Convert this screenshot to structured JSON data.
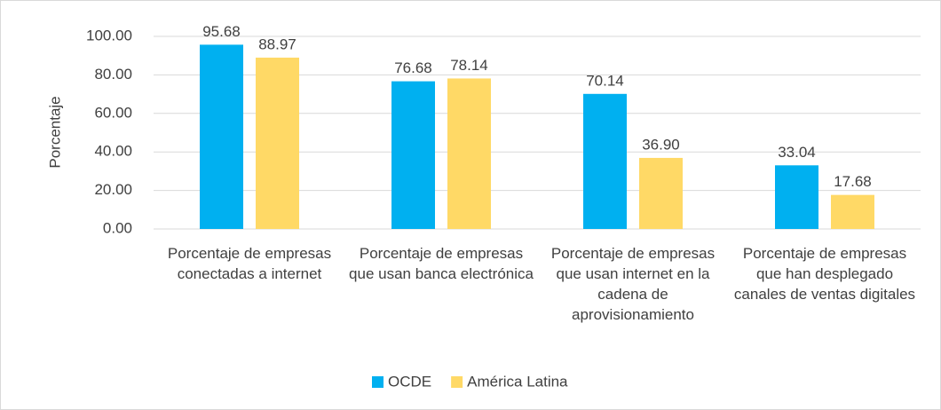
{
  "chart_data": {
    "type": "bar",
    "y_label": "Porcentaje",
    "categories": [
      "Porcentaje de empresas conectadas a internet",
      "Porcentaje de empresas que usan banca electrónica",
      "Porcentaje de empresas que usan internet en la cadena de aprovisionamiento",
      "Porcentaje de empresas que han desplegado canales de ventas digitales"
    ],
    "series": [
      {
        "name": "OCDE",
        "color": "#00b0f0",
        "values": [
          95.68,
          76.68,
          70.14,
          33.04
        ],
        "value_labels": [
          "95.68",
          "76.68",
          "70.14",
          "33.04"
        ]
      },
      {
        "name": "América Latina",
        "color": "#ffd966",
        "values": [
          88.97,
          78.14,
          36.9,
          17.68
        ],
        "value_labels": [
          "88.97",
          "78.14",
          "36.90",
          "17.68"
        ]
      }
    ],
    "ylim": [
      0,
      100
    ],
    "yticks": [
      {
        "value": 0,
        "label": "0.00"
      },
      {
        "value": 20,
        "label": "20.00"
      },
      {
        "value": 40,
        "label": "40.00"
      },
      {
        "value": 60,
        "label": "60.00"
      },
      {
        "value": 80,
        "label": "80.00"
      },
      {
        "value": 100,
        "label": "100.00"
      }
    ],
    "grid": true,
    "legend": "bottom"
  }
}
